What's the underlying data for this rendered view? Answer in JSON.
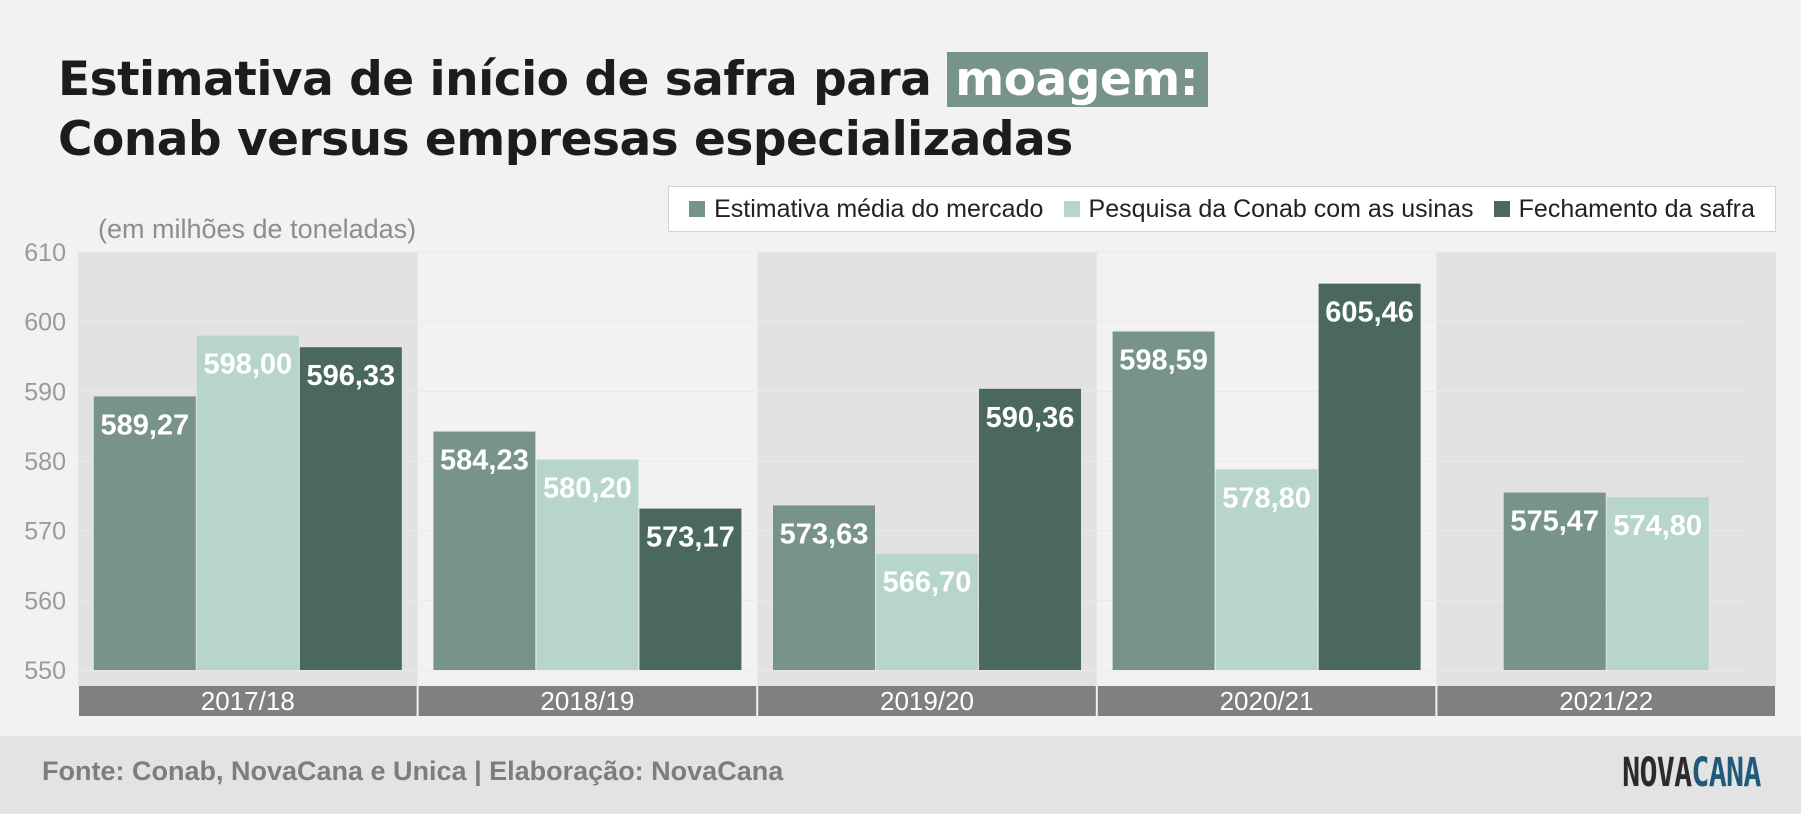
{
  "header": {
    "title_line1": "Estimativa de início de safra para",
    "title_highlight": "moagem:",
    "title_line2": "Conab versus empresas especializadas",
    "unit_label": "(em milhões de toneladas)"
  },
  "colors": {
    "market": "#789489",
    "conab": "#b7d5cc",
    "closing": "#4b685e",
    "category_bar": "#808080",
    "highlight": "#789489"
  },
  "legend": [
    {
      "label": "Estimativa média do mercado",
      "color": "#789489"
    },
    {
      "label": "Pesquisa da Conab com as usinas",
      "color": "#b7d5cc"
    },
    {
      "label": "Fechamento da safra",
      "color": "#4b685e"
    }
  ],
  "chart_data": {
    "type": "bar",
    "categories": [
      "2017/18",
      "2018/19",
      "2019/20",
      "2020/21",
      "2021/22"
    ],
    "series": [
      {
        "name": "Estimativa média do mercado",
        "values": [
          589.27,
          584.23,
          573.63,
          598.59,
          575.47
        ],
        "labels": [
          "589,27",
          "584,23",
          "573,63",
          "598,59",
          "575,47"
        ]
      },
      {
        "name": "Pesquisa da Conab com as usinas",
        "values": [
          598.0,
          580.2,
          566.7,
          578.8,
          574.8
        ],
        "labels": [
          "598,00",
          "580,20",
          "566,70",
          "578,80",
          "574,80"
        ]
      },
      {
        "name": "Fechamento da safra",
        "values": [
          596.33,
          573.17,
          590.36,
          605.46,
          null
        ],
        "labels": [
          "596,33",
          "573,17",
          "590,36",
          "605,46",
          null
        ]
      }
    ],
    "ylim": [
      550,
      610
    ],
    "yticks": [
      550,
      560,
      570,
      580,
      590,
      600,
      610
    ],
    "ylabel": "(em milhões de toneladas)",
    "grid": true,
    "legend_position": "top-right"
  },
  "footer": {
    "source": "Fonte: Conab, NovaCana e Unica | Elaboração: NovaCana",
    "logo_part1": "NOVA",
    "logo_part2": "CANA"
  }
}
